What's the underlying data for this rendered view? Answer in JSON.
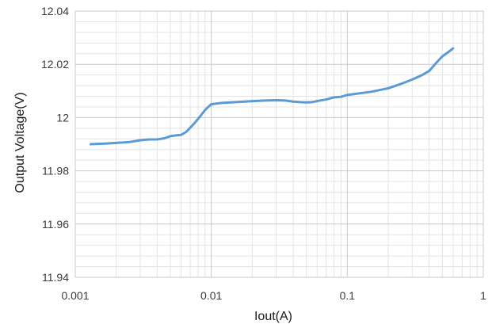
{
  "chart_data": {
    "type": "line",
    "title": "",
    "xlabel": "Iout(A)",
    "ylabel": "Output Voltage(V)",
    "xscale": "log",
    "xlim": [
      0.001,
      1
    ],
    "ylim": [
      11.94,
      12.04
    ],
    "xticks": [
      0.001,
      0.01,
      0.1,
      1
    ],
    "xtick_labels": [
      "0.001",
      "0.01",
      "0.1",
      "1"
    ],
    "yticks": [
      11.94,
      11.96,
      11.98,
      12.0,
      12.02,
      12.04
    ],
    "ytick_labels": [
      "11.94",
      "11.96",
      "11.98",
      "12",
      "12.02",
      "12.04"
    ],
    "grid": true,
    "minor_grid": true,
    "legend": "none",
    "series": [
      {
        "color": "#5b9bd5",
        "x": [
          0.0013,
          0.0016,
          0.002,
          0.0025,
          0.003,
          0.0035,
          0.004,
          0.0045,
          0.005,
          0.0055,
          0.006,
          0.0065,
          0.007,
          0.0075,
          0.008,
          0.0085,
          0.009,
          0.0095,
          0.01,
          0.011,
          0.012,
          0.015,
          0.02,
          0.025,
          0.03,
          0.035,
          0.04,
          0.045,
          0.05,
          0.055,
          0.06,
          0.07,
          0.08,
          0.09,
          0.1,
          0.15,
          0.2,
          0.25,
          0.3,
          0.35,
          0.4,
          0.45,
          0.5,
          0.55,
          0.6
        ],
        "y": [
          11.99,
          11.9902,
          11.9905,
          11.9908,
          11.9915,
          11.9918,
          11.9918,
          11.9922,
          11.993,
          11.9933,
          11.9935,
          11.9945,
          11.9962,
          11.9978,
          11.9995,
          12.0012,
          12.0028,
          12.004,
          12.005,
          12.0053,
          12.0055,
          12.0058,
          12.0062,
          12.0064,
          12.0065,
          12.0064,
          12.006,
          12.0058,
          12.0057,
          12.0058,
          12.0062,
          12.0068,
          12.0076,
          12.0078,
          12.0085,
          12.0097,
          12.011,
          12.0127,
          12.0143,
          12.0158,
          12.0175,
          12.0205,
          12.023,
          12.0245,
          12.026
        ]
      }
    ]
  }
}
